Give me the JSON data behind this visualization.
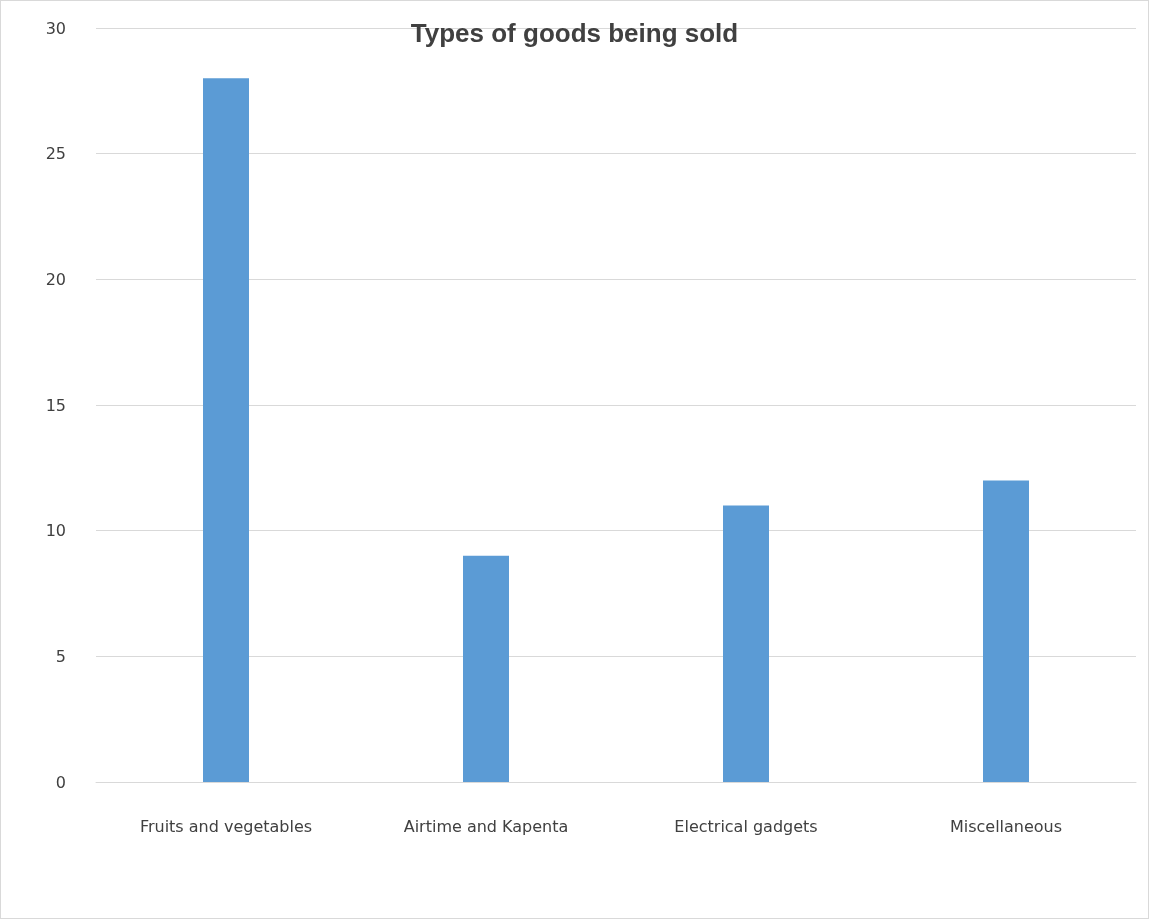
{
  "chart_data": {
    "type": "bar",
    "title": "Types of goods being sold",
    "categories": [
      "Fruits and vegetables",
      "Airtime and Kapenta",
      "Electrical gadgets",
      "Miscellaneous"
    ],
    "values": [
      28,
      9,
      11,
      12
    ],
    "color": "#5b9bd5",
    "ylim": [
      0,
      30
    ],
    "yticks": [
      0,
      5,
      10,
      15,
      20,
      25,
      30
    ],
    "grid": "y"
  }
}
